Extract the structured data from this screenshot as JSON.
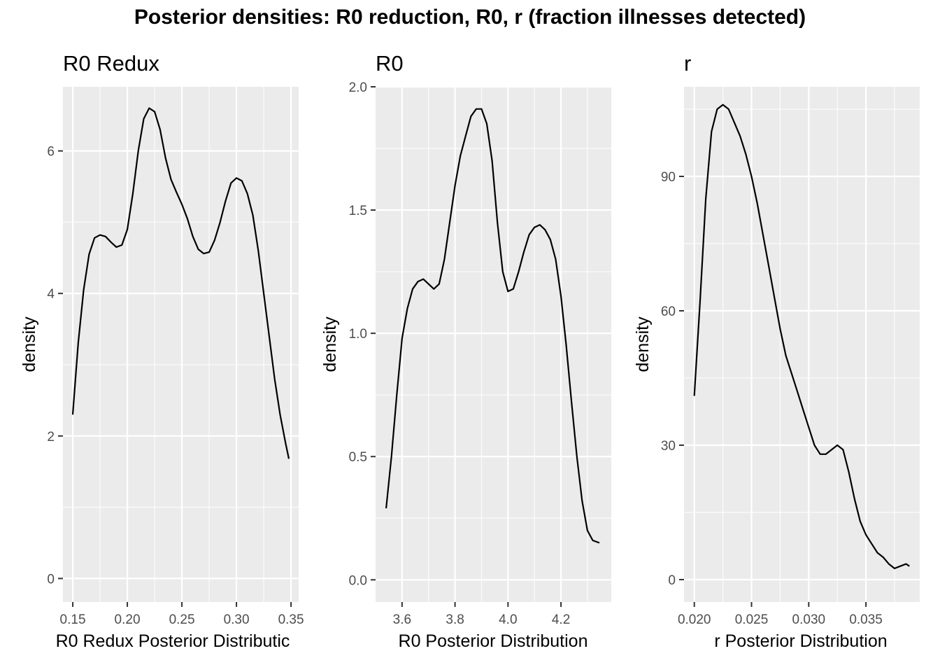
{
  "title": "Posterior densities: R0 reduction, R0, r (fraction illnesses detected)",
  "chart_data": [
    {
      "type": "line",
      "title": "R0 Redux",
      "xlabel": "R0 Redux Posterior Distributic",
      "ylabel": "density",
      "xlim": [
        0.141,
        0.357
      ],
      "ylim": [
        -0.33,
        6.9
      ],
      "xticks": [
        0.15,
        0.2,
        0.25,
        0.3,
        0.35
      ],
      "xtick_labels": [
        "0.15",
        "0.20",
        "0.25",
        "0.30",
        "0.35"
      ],
      "yticks": [
        0,
        2,
        4,
        6
      ],
      "ytick_labels": [
        "0",
        "2",
        "4",
        "6"
      ],
      "grid": true,
      "x": [
        0.15,
        0.155,
        0.16,
        0.165,
        0.17,
        0.175,
        0.18,
        0.185,
        0.19,
        0.195,
        0.2,
        0.205,
        0.21,
        0.215,
        0.22,
        0.225,
        0.23,
        0.235,
        0.24,
        0.245,
        0.25,
        0.255,
        0.26,
        0.265,
        0.27,
        0.275,
        0.28,
        0.285,
        0.29,
        0.295,
        0.3,
        0.305,
        0.31,
        0.315,
        0.32,
        0.325,
        0.33,
        0.335,
        0.34,
        0.345,
        0.348
      ],
      "y": [
        2.3,
        3.3,
        4.05,
        4.55,
        4.78,
        4.82,
        4.8,
        4.72,
        4.65,
        4.68,
        4.9,
        5.4,
        6.0,
        6.45,
        6.6,
        6.55,
        6.3,
        5.9,
        5.6,
        5.42,
        5.25,
        5.05,
        4.8,
        4.62,
        4.56,
        4.58,
        4.75,
        5.0,
        5.3,
        5.55,
        5.62,
        5.58,
        5.4,
        5.1,
        4.6,
        4.0,
        3.4,
        2.8,
        2.3,
        1.9,
        1.68
      ]
    },
    {
      "type": "line",
      "title": "R0",
      "xlabel": "R0 Posterior Distribution",
      "ylabel": "density",
      "xlim": [
        3.5,
        4.39
      ],
      "ylim": [
        -0.09,
        2.0
      ],
      "xticks": [
        3.6,
        3.8,
        4.0,
        4.2
      ],
      "xtick_labels": [
        "3.6",
        "3.8",
        "4.0",
        "4.2"
      ],
      "yticks": [
        0.0,
        0.5,
        1.0,
        1.5,
        2.0
      ],
      "ytick_labels": [
        "0.0",
        "0.5",
        "1.0",
        "1.5",
        "2.0"
      ],
      "grid": true,
      "x": [
        3.54,
        3.56,
        3.58,
        3.6,
        3.62,
        3.64,
        3.66,
        3.68,
        3.7,
        3.72,
        3.74,
        3.76,
        3.78,
        3.8,
        3.82,
        3.84,
        3.86,
        3.88,
        3.9,
        3.92,
        3.94,
        3.96,
        3.98,
        4.0,
        4.02,
        4.04,
        4.06,
        4.08,
        4.1,
        4.12,
        4.14,
        4.16,
        4.18,
        4.2,
        4.22,
        4.24,
        4.26,
        4.28,
        4.3,
        4.32,
        4.345
      ],
      "y": [
        0.29,
        0.5,
        0.75,
        0.98,
        1.1,
        1.18,
        1.21,
        1.22,
        1.2,
        1.18,
        1.2,
        1.3,
        1.45,
        1.6,
        1.72,
        1.8,
        1.88,
        1.91,
        1.91,
        1.85,
        1.7,
        1.45,
        1.25,
        1.17,
        1.18,
        1.25,
        1.33,
        1.4,
        1.43,
        1.44,
        1.42,
        1.38,
        1.3,
        1.15,
        0.95,
        0.72,
        0.5,
        0.32,
        0.2,
        0.16,
        0.15
      ]
    },
    {
      "type": "line",
      "title": "r",
      "xlabel": "r Posterior Distribution",
      "ylabel": "density",
      "xlim": [
        0.0191,
        0.0397
      ],
      "ylim": [
        -5,
        110
      ],
      "xticks": [
        0.02,
        0.025,
        0.03,
        0.035
      ],
      "xtick_labels": [
        "0.020",
        "0.025",
        "0.030",
        "0.035"
      ],
      "yticks": [
        0,
        30,
        60,
        90
      ],
      "ytick_labels": [
        "0",
        "30",
        "60",
        "90"
      ],
      "grid": true,
      "x": [
        0.02,
        0.0205,
        0.021,
        0.0215,
        0.022,
        0.0225,
        0.023,
        0.0235,
        0.024,
        0.0245,
        0.025,
        0.0255,
        0.026,
        0.0265,
        0.027,
        0.0275,
        0.028,
        0.0285,
        0.029,
        0.0295,
        0.03,
        0.0305,
        0.031,
        0.0315,
        0.032,
        0.0325,
        0.033,
        0.0335,
        0.034,
        0.0345,
        0.035,
        0.0355,
        0.036,
        0.0365,
        0.037,
        0.0375,
        0.038,
        0.0385,
        0.0388
      ],
      "y": [
        41,
        62,
        85,
        100,
        105,
        106,
        105,
        102,
        99,
        95,
        90,
        84,
        77,
        70,
        63,
        56,
        50,
        46,
        42,
        38,
        34,
        30,
        28,
        28,
        29,
        30,
        29,
        24,
        18,
        13,
        10,
        8,
        6,
        5,
        3.5,
        2.5,
        3,
        3.5,
        3
      ]
    }
  ]
}
